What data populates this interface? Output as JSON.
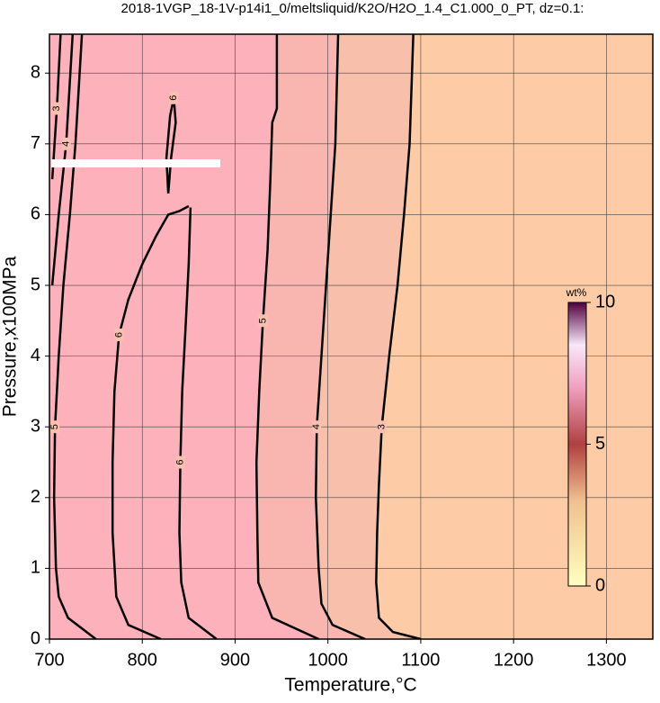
{
  "chart_data": {
    "type": "contour",
    "title": "2018-1VGP_18-1V-p14i1_0/meltsliquid/K2O/H2O_1.4_C1.000_0_PT, dz=0.1:",
    "x_label": "Temperature,°C",
    "y_label": "Pressure,x100MPa",
    "xlim": [
      700,
      1350
    ],
    "ylim": [
      0,
      8.55
    ],
    "xticks": [
      700,
      800,
      900,
      1000,
      1100,
      1200,
      1300
    ],
    "yticks": [
      0,
      1,
      2,
      3,
      4,
      5,
      6,
      7,
      8
    ],
    "grid": true,
    "background": "#fdcca6",
    "contours": [
      {
        "level": 3,
        "fill": "#f8bfab",
        "x": [
          1100,
          1070,
          1055,
          1052,
          1053,
          1055,
          1058,
          1066,
          1075,
          1082,
          1088,
          1092
        ],
        "y": [
          0,
          0.1,
          0.3,
          0.8,
          1.5,
          2.2,
          3,
          4,
          5,
          6,
          7,
          8.55
        ]
      },
      {
        "level": 4,
        "fill": "#f9b6b0",
        "x": [
          1040,
          1005,
          993,
          990,
          987,
          988,
          993,
          998,
          1003,
          1008,
          1011
        ],
        "y": [
          0,
          0.2,
          0.5,
          1,
          2,
          3,
          4,
          5,
          6,
          7,
          8.55
        ]
      },
      {
        "level": 5,
        "fill": "#fdb1ba",
        "x": [
          990,
          940,
          925,
          924,
          923,
          926,
          930,
          935,
          938,
          940,
          945,
          945
        ],
        "y": [
          0,
          0.3,
          0.8,
          1.5,
          2.5,
          3.5,
          4.5,
          5.5,
          6.5,
          7.3,
          7.5,
          8.55
        ]
      },
      {
        "level": 6,
        "x": [
          820,
          785,
          772,
          768,
          768,
          770,
          775,
          785,
          800,
          815,
          828,
          840,
          850
        ],
        "y": [
          0,
          0.2,
          0.6,
          1.5,
          2.5,
          3.5,
          4.3,
          4.8,
          5.3,
          5.7,
          6.0,
          6.05,
          6.12
        ]
      },
      {
        "level": 6,
        "x": [
          880,
          850,
          842,
          840,
          841,
          843,
          847,
          850,
          852
        ],
        "y": [
          0,
          0.3,
          0.8,
          1.5,
          2.5,
          3.5,
          4.5,
          5.3,
          6.1
        ]
      },
      {
        "level": 6,
        "x": [
          828,
          826,
          830,
          834,
          836,
          831,
          828
        ],
        "y": [
          6.3,
          6.8,
          7.4,
          7.65,
          7.3,
          6.8,
          6.3
        ]
      },
      {
        "level": 5,
        "x": [
          750,
          720,
          710,
          707,
          705,
          706,
          710,
          715,
          722,
          728,
          735
        ],
        "y": [
          0,
          0.3,
          0.6,
          1,
          2,
          3,
          4,
          5,
          6,
          7,
          8.55
        ]
      },
      {
        "level": 4,
        "x": [
          703,
          710,
          718,
          725
        ],
        "y": [
          5,
          6,
          7,
          8.55
        ]
      },
      {
        "level": 3,
        "x": [
          703,
          708,
          712
        ],
        "y": [
          6.5,
          7.5,
          8.55
        ]
      }
    ],
    "colorbar": {
      "label": "wt%",
      "ylim": [
        0,
        10
      ],
      "yticks": [
        0,
        5,
        10
      ]
    }
  }
}
